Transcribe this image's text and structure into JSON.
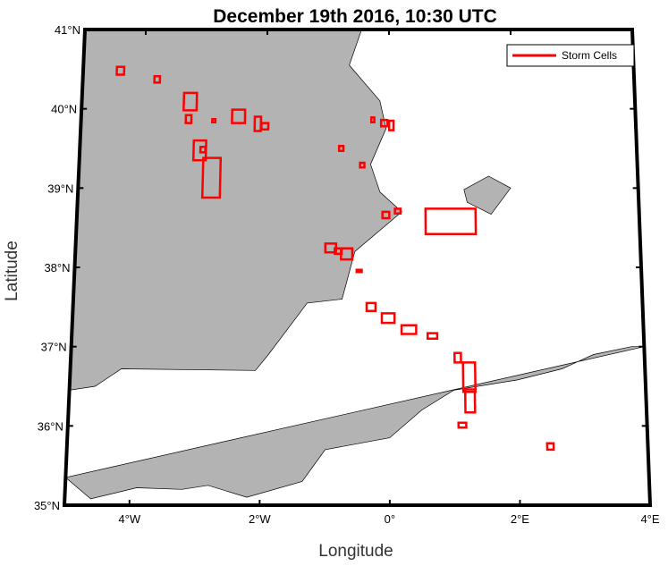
{
  "title": "December 19th 2016, 10:30 UTC",
  "xlabel": "Longitude",
  "ylabel": "Latitude",
  "legend": {
    "label": "Storm Cells",
    "color": "#ff0000",
    "position": "top-right"
  },
  "colors": {
    "land": "#b3b3b3",
    "sea": "#ffffff",
    "frame": "#000000",
    "cells": "#ff0000"
  },
  "lon_range": [
    -5,
    4
  ],
  "lat_range": [
    35,
    41
  ],
  "lon_ticks": [
    {
      "value": -4,
      "label": "4°W"
    },
    {
      "value": -2,
      "label": "2°W"
    },
    {
      "value": 0,
      "label": "0°"
    },
    {
      "value": 2,
      "label": "2°E"
    },
    {
      "value": 4,
      "label": "4°E"
    }
  ],
  "lat_ticks": [
    {
      "value": 35,
      "label": "35°N"
    },
    {
      "value": 36,
      "label": "36°N"
    },
    {
      "value": 37,
      "label": "37°N"
    },
    {
      "value": 38,
      "label": "38°N"
    },
    {
      "value": 39,
      "label": "39°N"
    },
    {
      "value": 40,
      "label": "40°N"
    },
    {
      "value": 41,
      "label": "41°N"
    }
  ],
  "land": [
    {
      "name": "iberia",
      "coords": [
        [
          -5,
          41
        ],
        [
          -0.45,
          41
        ],
        [
          -0.65,
          40.55
        ],
        [
          -0.15,
          40.1
        ],
        [
          -0.05,
          39.75
        ],
        [
          -0.3,
          39.3
        ],
        [
          -0.15,
          38.95
        ],
        [
          0.2,
          38.7
        ],
        [
          -0.55,
          38.2
        ],
        [
          -0.75,
          37.6
        ],
        [
          -1.3,
          37.55
        ],
        [
          -1.9,
          36.9
        ],
        [
          -2.1,
          36.7
        ],
        [
          -4.2,
          36.72
        ],
        [
          -4.6,
          36.5
        ],
        [
          -5,
          36.45
        ]
      ]
    },
    {
      "name": "north-africa",
      "coords": [
        [
          -5,
          35.35
        ],
        [
          -4.6,
          35.08
        ],
        [
          -3.9,
          35.22
        ],
        [
          -3.2,
          35.2
        ],
        [
          -2.8,
          35.25
        ],
        [
          -2.2,
          35.1
        ],
        [
          -1.35,
          35.3
        ],
        [
          -1.0,
          35.7
        ],
        [
          0.0,
          35.85
        ],
        [
          0.5,
          36.2
        ],
        [
          1.0,
          36.45
        ],
        [
          2.0,
          36.58
        ],
        [
          2.7,
          36.72
        ],
        [
          3.2,
          36.9
        ],
        [
          3.8,
          37.0
        ],
        [
          4,
          37
        ]
      ]
    },
    {
      "name": "ibiza",
      "coords": [
        [
          1.2,
          38.98
        ],
        [
          1.6,
          39.15
        ],
        [
          1.95,
          39.0
        ],
        [
          1.63,
          38.67
        ],
        [
          1.25,
          38.82
        ]
      ]
    }
  ],
  "chart_data": {
    "type": "scatter",
    "title": "December 19th 2016, 10:30 UTC",
    "xlabel": "Longitude",
    "ylabel": "Latitude",
    "xlim": [
      -5,
      4
    ],
    "ylim": [
      35,
      41
    ],
    "series": [
      {
        "name": "Storm Cells",
        "boxes": [
          [
            -4.45,
            40.43,
            -4.33,
            40.53
          ],
          [
            -3.83,
            40.33,
            -3.74,
            40.41
          ],
          [
            -3.34,
            39.98,
            -3.13,
            40.2
          ],
          [
            -3.3,
            39.82,
            -3.21,
            39.92
          ],
          [
            -2.87,
            39.83,
            -2.82,
            39.87
          ],
          [
            -2.55,
            39.82,
            -2.34,
            39.99
          ],
          [
            -2.18,
            39.72,
            -2.08,
            39.9
          ],
          [
            -2.07,
            39.74,
            -1.96,
            39.82
          ],
          [
            -3.16,
            39.35,
            -2.96,
            39.6
          ],
          [
            -3.05,
            39.45,
            -2.97,
            39.52
          ],
          [
            -3.0,
            38.88,
            -2.72,
            39.38
          ],
          [
            -0.29,
            39.83,
            -0.24,
            39.89
          ],
          [
            -0.13,
            39.78,
            -0.03,
            39.86
          ],
          [
            0.0,
            39.73,
            0.07,
            39.85
          ],
          [
            -0.81,
            39.47,
            -0.74,
            39.53
          ],
          [
            -0.47,
            39.26,
            -0.4,
            39.32
          ],
          [
            -0.11,
            38.62,
            0.0,
            38.7
          ],
          [
            0.09,
            38.68,
            0.18,
            38.74
          ],
          [
            0.58,
            38.42,
            1.38,
            38.74
          ],
          [
            -1.02,
            38.19,
            -0.85,
            38.3
          ],
          [
            -0.87,
            38.17,
            -0.76,
            38.24
          ],
          [
            -0.77,
            38.1,
            -0.59,
            38.24
          ],
          [
            -0.52,
            37.94,
            -0.44,
            37.97
          ],
          [
            -0.36,
            37.45,
            -0.22,
            37.55
          ],
          [
            -0.12,
            37.3,
            0.08,
            37.42
          ],
          [
            0.19,
            37.16,
            0.42,
            37.27
          ],
          [
            0.6,
            37.1,
            0.75,
            37.17
          ],
          [
            1.02,
            36.8,
            1.12,
            36.92
          ],
          [
            1.15,
            36.43,
            1.34,
            36.8
          ],
          [
            1.18,
            36.17,
            1.33,
            36.46
          ],
          [
            1.07,
            35.98,
            1.19,
            36.04
          ],
          [
            2.44,
            35.7,
            2.54,
            35.78
          ]
        ]
      }
    ]
  }
}
